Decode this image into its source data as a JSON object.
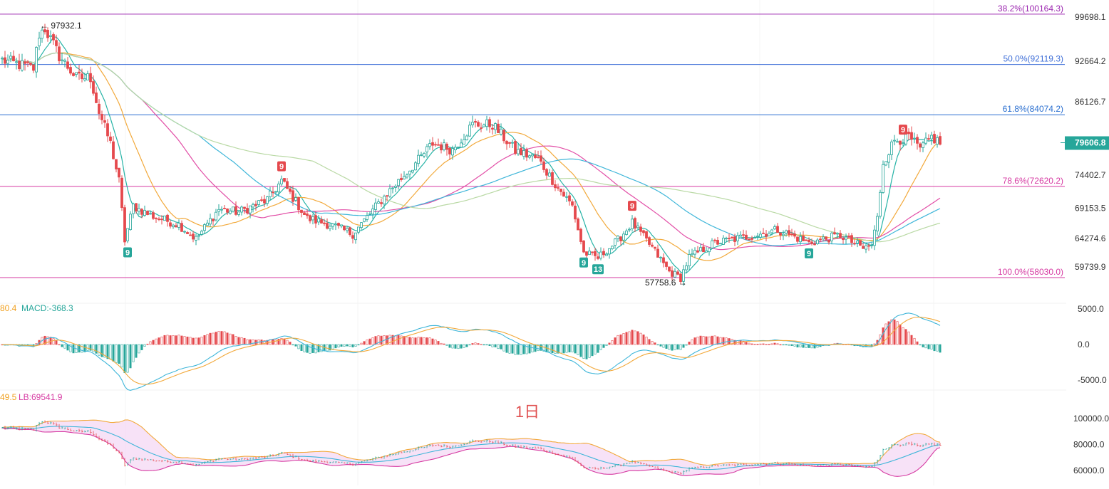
{
  "main_panel": {
    "y_axis_ticks": [
      "99698.1",
      "92664.2",
      "86126.7",
      "74402.7",
      "69153.5",
      "64274.6",
      "59739.9"
    ],
    "y_axis_tick_values": [
      99698.1,
      92664.2,
      86126.7,
      74402.7,
      69153.5,
      64274.6,
      59739.9
    ],
    "current_price": "79606.8",
    "current_price_value": 79606.8,
    "fib_levels": [
      {
        "label": "38.2%(100164.3)",
        "value": 100164.3,
        "color": "#9c27b0"
      },
      {
        "label": "50.0%(92119.3)",
        "value": 92119.3,
        "color": "#3f6fd8"
      },
      {
        "label": "61.8%(84074.2)",
        "value": 84074.2,
        "color": "#2a6fd0"
      },
      {
        "label": "78.6%(72620.2)",
        "value": 72620.2,
        "color": "#d63aa2"
      },
      {
        "label": "100.0%(58030.0)",
        "value": 58030.0,
        "color": "#d63aa2"
      }
    ],
    "high_marker": {
      "text": "← 97932.1",
      "value": 97932.1
    },
    "low_marker": {
      "text": "57758.6 →",
      "value": 57758.6
    },
    "td_signals": [
      {
        "text": "9",
        "type": "sell",
        "idx": 98
      },
      {
        "text": "9",
        "type": "buy",
        "idx": 44
      },
      {
        "text": "9",
        "type": "sell",
        "idx": 221
      },
      {
        "text": "9",
        "type": "buy",
        "idx": 204
      },
      {
        "text": "13",
        "type": "buy",
        "idx": 209
      },
      {
        "text": "9",
        "type": "buy",
        "idx": 283
      },
      {
        "text": "9",
        "type": "sell",
        "idx": 316
      }
    ],
    "ma_colors": [
      "#26b3a6",
      "#f2a93b",
      "#e24fa7",
      "#3fb6d9",
      "#b9d9a4"
    ]
  },
  "macd_panel": {
    "legend_prefix": "80.4",
    "legend_macd": "MACD:-368.3",
    "y_axis_ticks": [
      "5000.0",
      "0.0",
      "-5000.0"
    ],
    "y_axis_tick_values": [
      5000,
      0,
      -5000
    ]
  },
  "boll_panel": {
    "legend_prefix": "49.5",
    "legend_lb": "LB:69541.9",
    "y_axis_ticks": [
      "100000.0",
      "80000.0",
      "60000.0"
    ],
    "y_axis_tick_values": [
      100000,
      80000,
      60000
    ]
  },
  "watermark": "1日",
  "chart_data": {
    "type": "candlestick",
    "timeframe": "1日",
    "ylim": [
      57000,
      101500
    ],
    "keypoints": [
      [
        0,
        92800
      ],
      [
        11,
        91500
      ],
      [
        13,
        97000
      ],
      [
        15,
        97900
      ],
      [
        20,
        93500
      ],
      [
        26,
        90000
      ],
      [
        31,
        90000
      ],
      [
        34,
        84500
      ],
      [
        38,
        79500
      ],
      [
        41,
        73500
      ],
      [
        43,
        64000
      ],
      [
        46,
        69500
      ],
      [
        52,
        68000
      ],
      [
        62,
        66500
      ],
      [
        68,
        64200
      ],
      [
        76,
        69000
      ],
      [
        83,
        68500
      ],
      [
        93,
        70500
      ],
      [
        98,
        73500
      ],
      [
        107,
        67500
      ],
      [
        115,
        66500
      ],
      [
        123,
        65000
      ],
      [
        135,
        71500
      ],
      [
        146,
        76800
      ],
      [
        151,
        79500
      ],
      [
        158,
        78500
      ],
      [
        165,
        82500
      ],
      [
        172,
        82500
      ],
      [
        180,
        78300
      ],
      [
        188,
        77000
      ],
      [
        194,
        73000
      ],
      [
        200,
        69500
      ],
      [
        204,
        62000
      ],
      [
        209,
        61200
      ],
      [
        216,
        64000
      ],
      [
        221,
        66800
      ],
      [
        228,
        62800
      ],
      [
        234,
        59000
      ],
      [
        238,
        58000
      ],
      [
        241,
        61300
      ],
      [
        250,
        63600
      ],
      [
        265,
        64900
      ],
      [
        272,
        65700
      ],
      [
        283,
        63600
      ],
      [
        294,
        64800
      ],
      [
        302,
        62700
      ],
      [
        305,
        63200
      ],
      [
        307,
        67500
      ],
      [
        309,
        76500
      ],
      [
        313,
        80000
      ],
      [
        318,
        80500
      ],
      [
        322,
        78500
      ],
      [
        326,
        80500
      ],
      [
        329,
        79600
      ]
    ]
  }
}
